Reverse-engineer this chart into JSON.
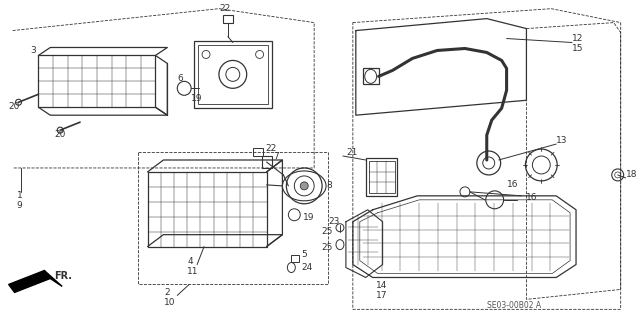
{
  "bg_color": "#ffffff",
  "diagram_color": "#333333",
  "fig_width": 6.4,
  "fig_height": 3.19,
  "watermark": "SE03-00B02 A",
  "fr_label": "FR."
}
